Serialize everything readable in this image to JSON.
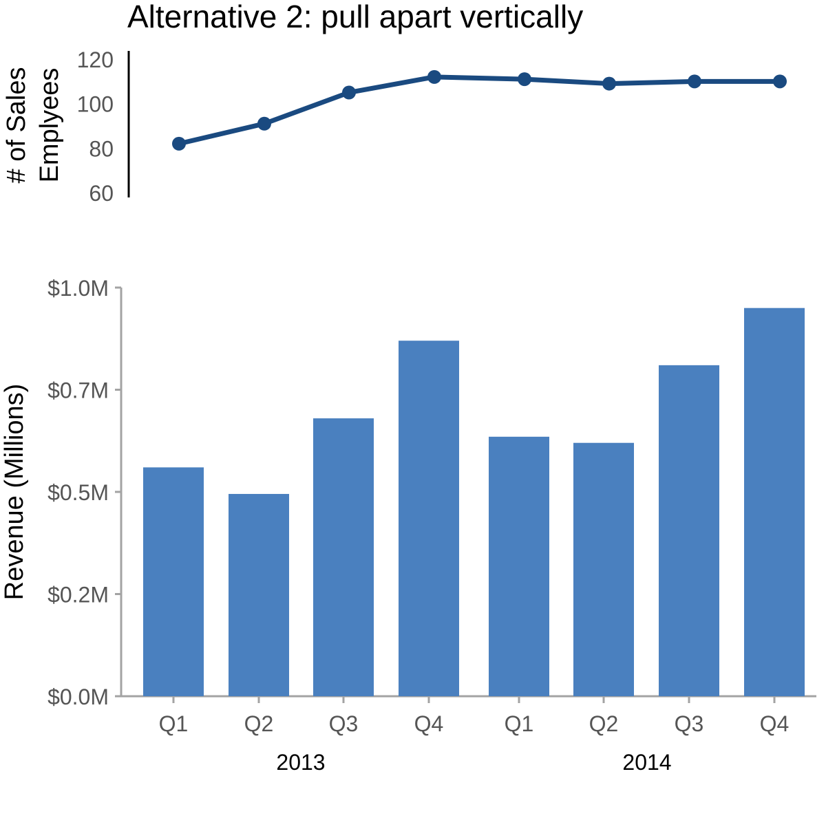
{
  "chart_data": [
    {
      "type": "line",
      "title": "Alternative 2: pull apart vertically",
      "ylabel_lines": [
        "# of Sales",
        "Emplyees"
      ],
      "ylim": [
        60,
        120
      ],
      "yticks": [
        60,
        80,
        100,
        120
      ],
      "ytick_labels": [
        "60",
        "80",
        "100",
        "120"
      ],
      "categories": [
        "2013 Q1",
        "2013 Q2",
        "2013 Q3",
        "2013 Q4",
        "2014 Q1",
        "2014 Q2",
        "2014 Q3",
        "2014 Q4"
      ],
      "values": [
        82,
        91,
        105,
        112,
        111,
        109,
        110,
        110
      ],
      "grid": false,
      "color": "#1a4a80"
    },
    {
      "type": "bar",
      "ylabel": "Revenue (Millions)",
      "ylim": [
        0,
        1.0
      ],
      "yticks": [
        0,
        0.25,
        0.5,
        0.75,
        1.0
      ],
      "ytick_labels": [
        "$0.0M",
        "$0.2M",
        "$0.5M",
        "$0.7M",
        "$1.0M"
      ],
      "categories": [
        "Q1",
        "Q2",
        "Q3",
        "Q4",
        "Q1",
        "Q2",
        "Q3",
        "Q4"
      ],
      "groups": [
        "2013",
        "2014"
      ],
      "values": [
        0.56,
        0.495,
        0.68,
        0.87,
        0.635,
        0.62,
        0.81,
        0.95
      ],
      "grid": false,
      "color": "#4a80bf"
    }
  ]
}
